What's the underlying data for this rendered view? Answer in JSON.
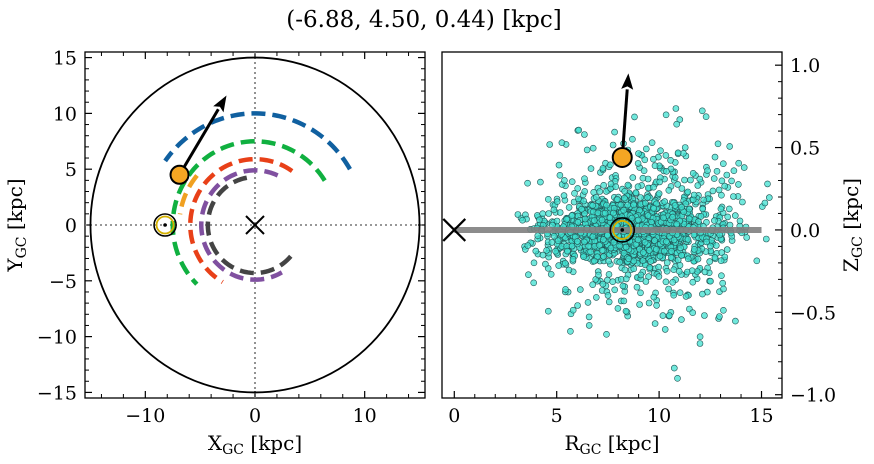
{
  "title": "(-6.88, 4.50, 0.44) [kpc]",
  "chart_data": [
    {
      "type": "line",
      "panel": "left",
      "xlabel": "X",
      "xlabel_sub": "GC",
      "xlabel_unit": " [kpc]",
      "ylabel": "Y",
      "ylabel_sub": "GC",
      "ylabel_unit": " [kpc]",
      "xlim": [
        -15.5,
        15.5
      ],
      "ylim": [
        -15.5,
        15.5
      ],
      "xticks": [
        -10,
        0,
        10
      ],
      "xtick_labels": [
        "−10",
        "0",
        "10"
      ],
      "yticks": [
        -15,
        -10,
        -5,
        0,
        5,
        10,
        15
      ],
      "ytick_labels": [
        "−15",
        "−10",
        "−5",
        "0",
        "5",
        "10",
        "15"
      ],
      "circle_radius": 15,
      "galactic_center": [
        0,
        0
      ],
      "sun_position": [
        -8.2,
        0
      ],
      "source_position": [
        -6.88,
        4.5
      ],
      "velocity_arrow_end": [
        -2.6,
        11.6
      ],
      "arms": [
        {
          "color": "#1060a0",
          "radius": 10.0,
          "angle_start": 30,
          "angle_end": 145
        },
        {
          "color": "#10b040",
          "radius": 7.5,
          "angle_start": 32,
          "angle_end": 225
        },
        {
          "color": "#f0a020",
          "radius": 6.9,
          "angle_start": 140,
          "angle_end": 172
        },
        {
          "color": "#e84018",
          "radius": 5.9,
          "angle_start": 55,
          "angle_end": 240
        },
        {
          "color": "#8050a0",
          "radius": 4.9,
          "angle_start": 65,
          "angle_end": 300
        },
        {
          "color": "#444444",
          "radius": 4.3,
          "angle_start": 100,
          "angle_end": 320
        }
      ]
    },
    {
      "type": "scatter",
      "panel": "right",
      "xlabel": "R",
      "xlabel_sub": "GC",
      "xlabel_unit": " [kpc]",
      "ylabel": "Z",
      "ylabel_sub": "GC",
      "ylabel_unit": " [kpc]",
      "xlim": [
        -0.6,
        16.0
      ],
      "ylim": [
        -1.02,
        1.08
      ],
      "xticks": [
        0,
        5,
        10,
        15
      ],
      "xtick_labels": [
        "0",
        "5",
        "10",
        "15"
      ],
      "yticks": [
        -1.0,
        -0.5,
        0.0,
        0.5,
        1.0
      ],
      "ytick_labels": [
        "−1.0",
        "−0.5",
        "0.0",
        "0.5",
        "1.0"
      ],
      "disk_line": {
        "x": [
          0,
          15
        ],
        "y": 0
      },
      "galactic_center": [
        0,
        0
      ],
      "sun_position": [
        8.2,
        0
      ],
      "source_position": [
        8.2,
        0.44
      ],
      "velocity_arrow_end": [
        8.5,
        0.95
      ],
      "point_color": "#40e0d0",
      "approx_point_count": 2000
    }
  ]
}
